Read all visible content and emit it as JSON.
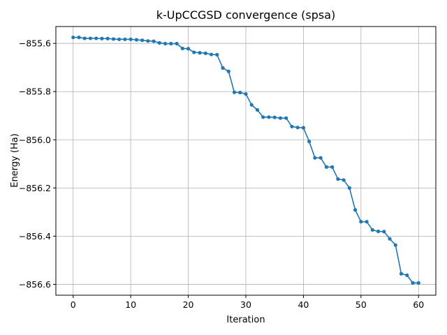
{
  "chart_data": {
    "type": "line",
    "title": "k-UpCCGSD convergence (spsa)",
    "xlabel": "Iteration",
    "ylabel": "Energy (Ha)",
    "xlim": [
      -3,
      63
    ],
    "ylim": [
      -856.645,
      -855.53
    ],
    "xticks": [
      0,
      10,
      20,
      30,
      40,
      50,
      60
    ],
    "yticks": [
      -856.6,
      -856.4,
      -856.2,
      -856.0,
      -855.8,
      -855.6
    ],
    "xtick_labels": [
      "0",
      "10",
      "20",
      "30",
      "40",
      "50",
      "60"
    ],
    "ytick_labels": [
      "−856.6",
      "−856.4",
      "−856.2",
      "−856.0",
      "−855.8",
      "−855.6"
    ],
    "grid": true,
    "color": "#1f77b4",
    "series": [
      {
        "x": [
          0,
          1,
          2,
          3,
          4,
          5,
          6,
          7,
          8,
          9,
          10,
          11,
          12,
          13,
          14,
          15,
          16,
          17,
          18,
          19,
          20,
          21,
          22,
          23,
          24,
          25,
          26,
          27,
          28,
          29,
          30,
          31,
          32,
          33,
          34,
          35,
          36,
          37,
          38,
          39,
          40,
          41,
          42,
          43,
          44,
          45,
          46,
          47,
          48,
          49,
          50,
          51,
          52,
          53,
          54,
          55,
          56,
          57,
          58,
          59,
          60
        ],
        "values": [
          -855.575,
          -855.575,
          -855.579,
          -855.579,
          -855.579,
          -855.58,
          -855.58,
          -855.582,
          -855.583,
          -855.583,
          -855.583,
          -855.585,
          -855.587,
          -855.59,
          -855.591,
          -855.598,
          -855.601,
          -855.601,
          -855.601,
          -855.621,
          -855.622,
          -855.637,
          -855.639,
          -855.641,
          -855.646,
          -855.647,
          -855.702,
          -855.716,
          -855.803,
          -855.804,
          -855.81,
          -855.855,
          -855.876,
          -855.906,
          -855.906,
          -855.907,
          -855.91,
          -855.91,
          -855.945,
          -855.949,
          -855.95,
          -856.007,
          -856.075,
          -856.075,
          -856.113,
          -856.113,
          -856.163,
          -856.167,
          -856.2,
          -856.291,
          -856.34,
          -856.34,
          -856.374,
          -856.38,
          -856.381,
          -856.411,
          -856.437,
          -856.556,
          -856.562,
          -856.594,
          -856.594
        ]
      }
    ]
  }
}
